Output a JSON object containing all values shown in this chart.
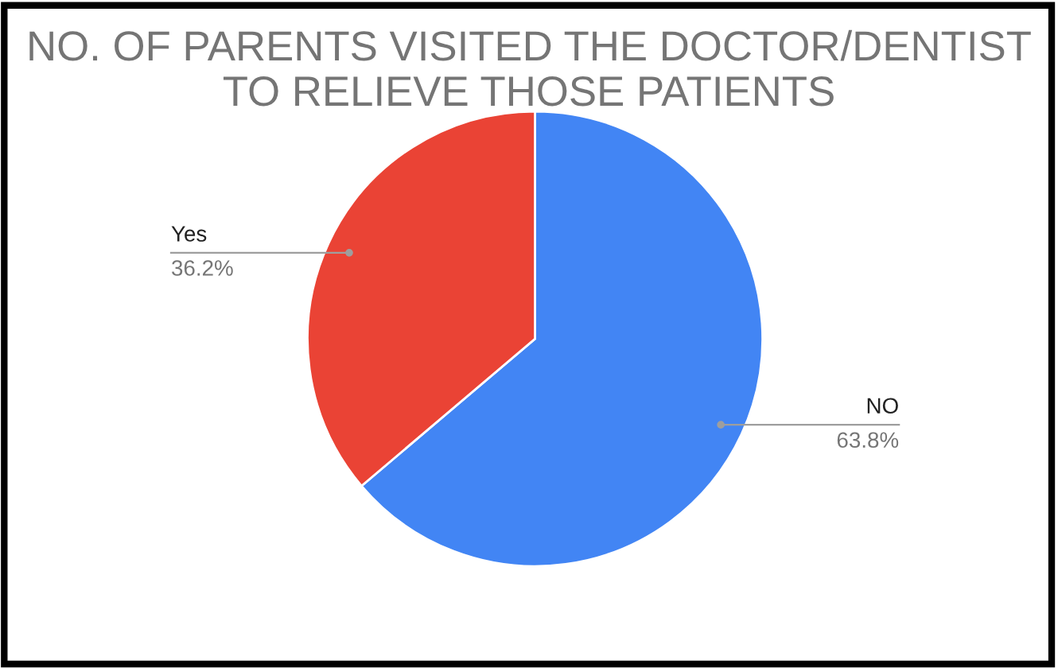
{
  "chart_data": {
    "type": "pie",
    "title": "NO. OF PARENTS VISITED THE DOCTOR/DENTIST TO RELIEVE THOSE PATIENTS",
    "categories": [
      "NO",
      "Yes"
    ],
    "values": [
      63.8,
      36.2
    ],
    "colors": [
      "#4285f4",
      "#ea4335"
    ],
    "value_labels": [
      "63.8%",
      "36.2%"
    ],
    "legend": false
  }
}
